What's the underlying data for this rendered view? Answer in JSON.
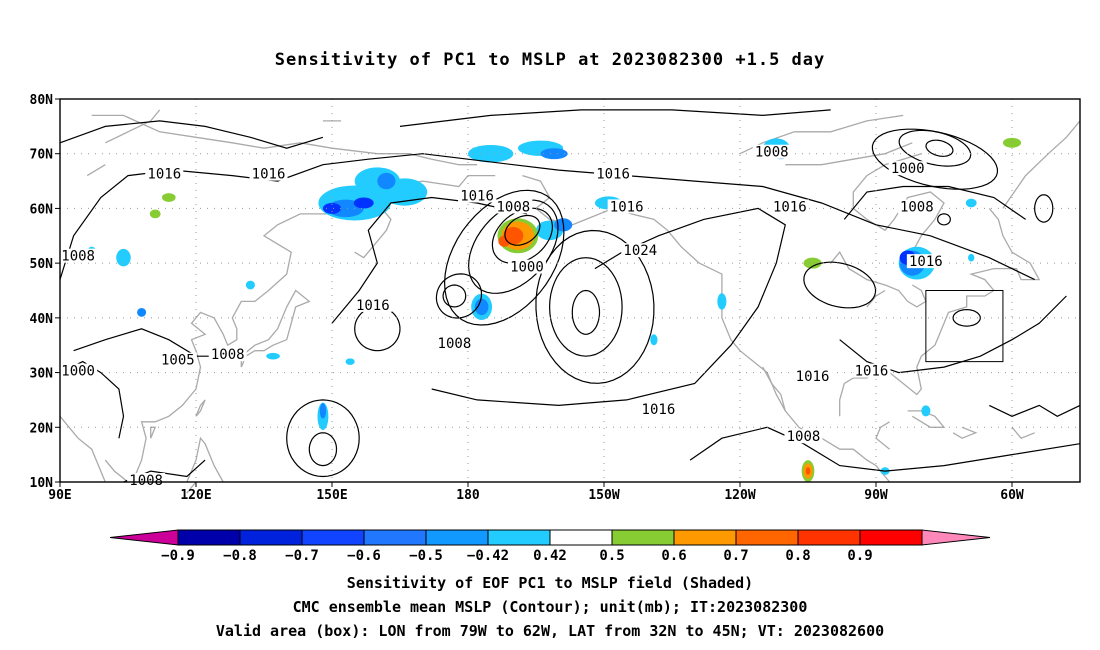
{
  "title": "Sensitivity of PC1 to MSLP at 2023082300 +1.5 day",
  "lat_labels": [
    "80N",
    "70N",
    "60N",
    "50N",
    "40N",
    "30N",
    "20N",
    "10N"
  ],
  "lon_labels": [
    "90E",
    "120E",
    "150E",
    "180",
    "150W",
    "120W",
    "90W",
    "60W"
  ],
  "contour_labels": [
    {
      "text": "1016",
      "lon": 113,
      "lat": 66
    },
    {
      "text": "1016",
      "lon": 136,
      "lat": 66
    },
    {
      "text": "1016",
      "lon": 212,
      "lat": 66
    },
    {
      "text": "1008",
      "lon": 247,
      "lat": 70
    },
    {
      "text": "1016",
      "lon": 182,
      "lat": 62
    },
    {
      "text": "1008",
      "lon": 190,
      "lat": 60
    },
    {
      "text": "1016",
      "lon": 215,
      "lat": 60
    },
    {
      "text": "1016",
      "lon": 251,
      "lat": 60
    },
    {
      "text": "1000",
      "lon": 277,
      "lat": 67
    },
    {
      "text": "1008",
      "lon": 279,
      "lat": 60
    },
    {
      "text": "1024",
      "lon": 218,
      "lat": 52
    },
    {
      "text": "1016",
      "lon": 281,
      "lat": 50
    },
    {
      "text": "1000",
      "lon": 193,
      "lat": 49
    },
    {
      "text": "1008",
      "lon": 94,
      "lat": 51
    },
    {
      "text": "1016",
      "lon": 159,
      "lat": 42
    },
    {
      "text": "1008",
      "lon": 177,
      "lat": 35
    },
    {
      "text": "1005",
      "lon": 116,
      "lat": 32
    },
    {
      "text": "1008",
      "lon": 127,
      "lat": 33
    },
    {
      "text": "1000",
      "lon": 94,
      "lat": 30
    },
    {
      "text": "1016",
      "lon": 256,
      "lat": 29
    },
    {
      "text": "1016",
      "lon": 269,
      "lat": 30
    },
    {
      "text": "1016",
      "lon": 222,
      "lat": 23
    },
    {
      "text": "1008",
      "lon": 254,
      "lat": 18
    },
    {
      "text": "1008",
      "lon": 109,
      "lat": 10
    }
  ],
  "colorbar": {
    "colors": [
      "#cc0099",
      "#0000aa",
      "#0022dd",
      "#1144ff",
      "#2277ff",
      "#1199ff",
      "#22ccff",
      "#ffffff",
      "#88cc33",
      "#ff9900",
      "#ff6600",
      "#ff3300",
      "#ff0000",
      "#ff88bb"
    ],
    "labels": [
      "−0.9",
      "−0.8",
      "−0.7",
      "−0.6",
      "−0.5",
      "−0.42",
      "0.42",
      "0.5",
      "0.6",
      "0.7",
      "0.8",
      "0.9"
    ]
  },
  "shading_colors": {
    "blue_dark": "#0033ff",
    "blue_mid": "#1188ff",
    "blue_light": "#22ccff",
    "green": "#88cc33",
    "orange": "#ff9900",
    "red": "#ff5500"
  },
  "valid_box": {
    "lon_min": -79,
    "lon_max": -62,
    "lat_min": 32,
    "lat_max": 45
  },
  "captions": [
    "Sensitivity of EOF PC1 to MSLP field (Shaded)",
    "CMC ensemble mean MSLP (Contour); unit(mb); IT:2023082300",
    "Valid area (box): LON from 79W to 62W, LAT from 32N to 45N; VT: 2023082600"
  ]
}
